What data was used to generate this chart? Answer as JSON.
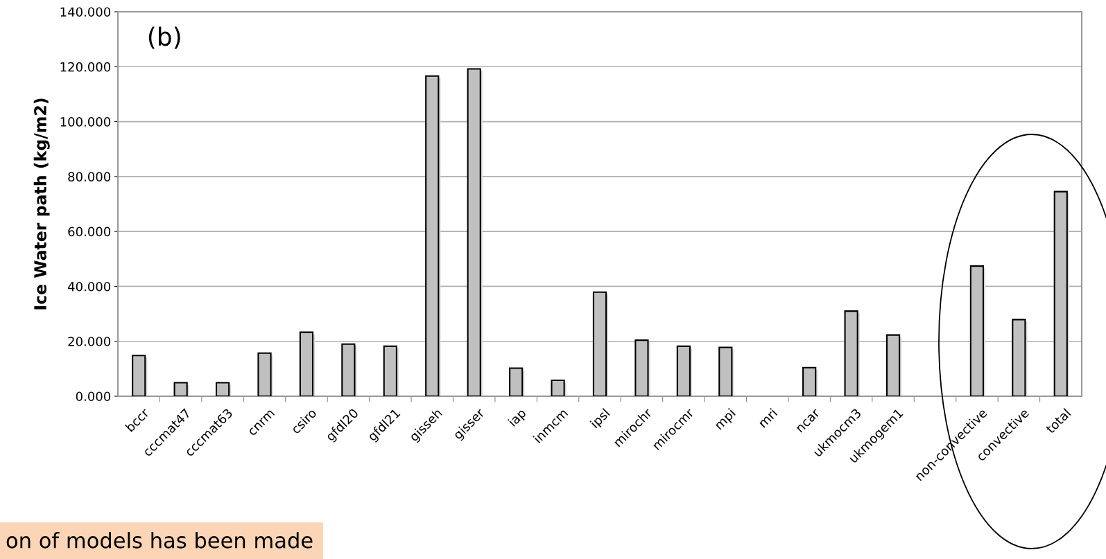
{
  "chart_data": {
    "type": "bar",
    "ylabel": "Ice Water path (kg/m2)",
    "categories": [
      "bccr",
      "cccmat47",
      "cccmat63",
      "cnrm",
      "csiro",
      "gfdl20",
      "gfdl21",
      "gisseh",
      "gisser",
      "iap",
      "inmcm",
      "ipsl",
      "mirochr",
      "mirocmr",
      "mpi",
      "mri",
      "ncar",
      "ukmocm3",
      "ukmogem1",
      null,
      "non-convective",
      "convective",
      "total"
    ],
    "values": [
      14.8,
      4.9,
      4.9,
      15.7,
      23.3,
      19.0,
      18.2,
      116.6,
      119.2,
      10.2,
      5.8,
      37.9,
      20.4,
      18.2,
      17.8,
      null,
      10.4,
      31.0,
      22.3,
      null,
      47.4,
      27.9,
      74.5
    ],
    "color": "#c0c0c0",
    "ylim": [
      0,
      140
    ],
    "yticks": [
      {
        "value": 0,
        "label": "0.000"
      },
      {
        "value": 20,
        "label": "20.000"
      },
      {
        "value": 40,
        "label": "40.000"
      },
      {
        "value": 60,
        "label": "60.000"
      },
      {
        "value": 80,
        "label": "80.000"
      },
      {
        "value": 100,
        "label": "100.000"
      },
      {
        "value": 120,
        "label": "120.000"
      },
      {
        "value": 140,
        "label": "140.000"
      }
    ],
    "grid": "y",
    "annotations": [
      "(b)",
      "on of models has been made"
    ]
  }
}
